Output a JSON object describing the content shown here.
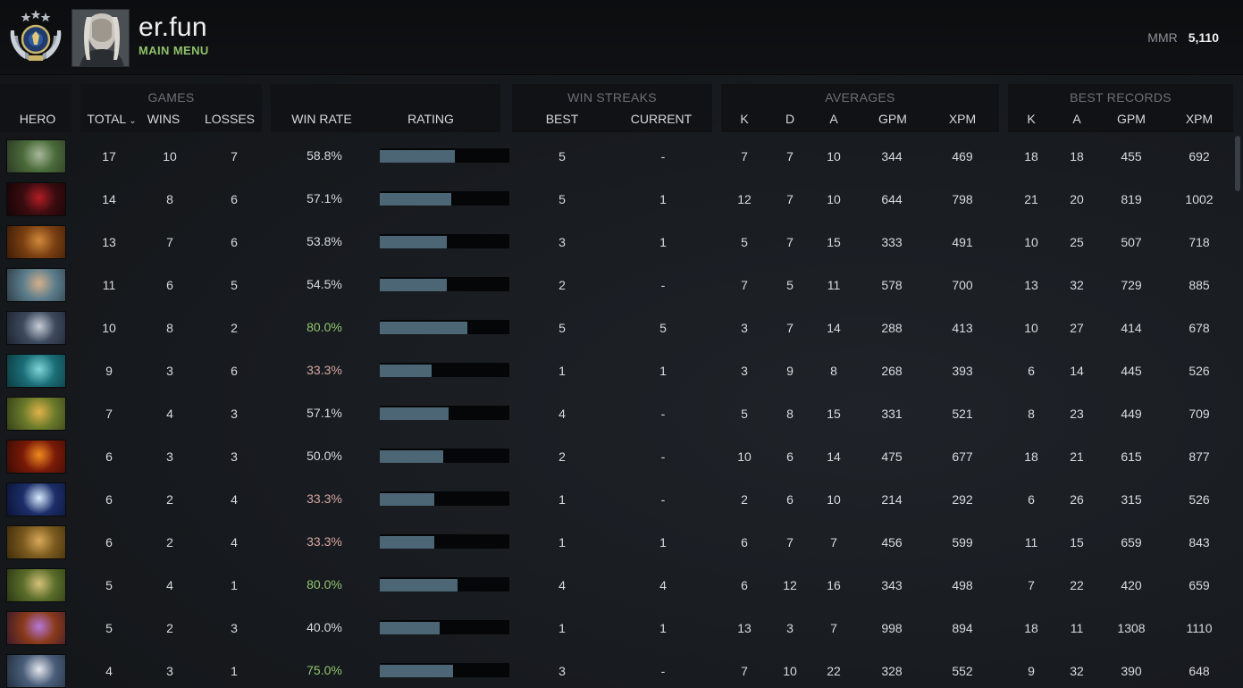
{
  "header": {
    "username": "er.fun",
    "subtitle": "MAIN MENU",
    "mmr_label": "MMR",
    "mmr_value": "5,110"
  },
  "groups": {
    "games": "GAMES",
    "win_streaks": "WIN STREAKS",
    "averages": "AVERAGES",
    "best_records": "BEST RECORDS"
  },
  "columns": {
    "hero": "HERO",
    "total": "TOTAL",
    "wins": "WINS",
    "losses": "LOSSES",
    "win_rate": "WIN RATE",
    "rating": "RATING",
    "best": "BEST",
    "current": "CURRENT",
    "avg_k": "K",
    "avg_d": "D",
    "avg_a": "A",
    "avg_gpm": "GPM",
    "avg_xpm": "XPM",
    "rec_k": "K",
    "rec_a": "A",
    "rec_gpm": "GPM",
    "rec_xpm": "XPM"
  },
  "colors": {
    "high_win_rate": "#92c56e",
    "low_win_rate": "#d8a8a2",
    "rating_bar": "#4d6676",
    "accent_green": "#8fc16a"
  },
  "rows": [
    {
      "hero": "hero-1",
      "total": "17",
      "wins": "10",
      "losses": "7",
      "win_rate": "58.8%",
      "rating": 0.59,
      "best": "5",
      "current": "-",
      "k": "7",
      "d": "7",
      "a": "10",
      "gpm": "344",
      "xpm": "469",
      "bk": "18",
      "ba": "18",
      "bgpm": "455",
      "bxpm": "692"
    },
    {
      "hero": "hero-2",
      "total": "14",
      "wins": "8",
      "losses": "6",
      "win_rate": "57.1%",
      "rating": 0.56,
      "best": "5",
      "current": "1",
      "k": "12",
      "d": "7",
      "a": "10",
      "gpm": "644",
      "xpm": "798",
      "bk": "21",
      "ba": "20",
      "bgpm": "819",
      "bxpm": "1002"
    },
    {
      "hero": "hero-3",
      "total": "13",
      "wins": "7",
      "losses": "6",
      "win_rate": "53.8%",
      "rating": 0.53,
      "best": "3",
      "current": "1",
      "k": "5",
      "d": "7",
      "a": "15",
      "gpm": "333",
      "xpm": "491",
      "bk": "10",
      "ba": "25",
      "bgpm": "507",
      "bxpm": "718"
    },
    {
      "hero": "hero-4",
      "total": "11",
      "wins": "6",
      "losses": "5",
      "win_rate": "54.5%",
      "rating": 0.53,
      "best": "2",
      "current": "-",
      "k": "7",
      "d": "5",
      "a": "11",
      "gpm": "578",
      "xpm": "700",
      "bk": "13",
      "ba": "32",
      "bgpm": "729",
      "bxpm": "885"
    },
    {
      "hero": "hero-5",
      "total": "10",
      "wins": "8",
      "losses": "2",
      "win_rate": "80.0%",
      "rating": 0.69,
      "best": "5",
      "current": "5",
      "k": "3",
      "d": "7",
      "a": "14",
      "gpm": "288",
      "xpm": "413",
      "bk": "10",
      "ba": "27",
      "bgpm": "414",
      "bxpm": "678"
    },
    {
      "hero": "hero-6",
      "total": "9",
      "wins": "3",
      "losses": "6",
      "win_rate": "33.3%",
      "rating": 0.41,
      "best": "1",
      "current": "1",
      "k": "3",
      "d": "9",
      "a": "8",
      "gpm": "268",
      "xpm": "393",
      "bk": "6",
      "ba": "14",
      "bgpm": "445",
      "bxpm": "526"
    },
    {
      "hero": "hero-7",
      "total": "7",
      "wins": "4",
      "losses": "3",
      "win_rate": "57.1%",
      "rating": 0.54,
      "best": "4",
      "current": "-",
      "k": "5",
      "d": "8",
      "a": "15",
      "gpm": "331",
      "xpm": "521",
      "bk": "8",
      "ba": "23",
      "bgpm": "449",
      "bxpm": "709"
    },
    {
      "hero": "hero-8",
      "total": "6",
      "wins": "3",
      "losses": "3",
      "win_rate": "50.0%",
      "rating": 0.5,
      "best": "2",
      "current": "-",
      "k": "10",
      "d": "6",
      "a": "14",
      "gpm": "475",
      "xpm": "677",
      "bk": "18",
      "ba": "21",
      "bgpm": "615",
      "bxpm": "877"
    },
    {
      "hero": "hero-9",
      "total": "6",
      "wins": "2",
      "losses": "4",
      "win_rate": "33.3%",
      "rating": 0.43,
      "best": "1",
      "current": "-",
      "k": "2",
      "d": "6",
      "a": "10",
      "gpm": "214",
      "xpm": "292",
      "bk": "6",
      "ba": "26",
      "bgpm": "315",
      "bxpm": "526"
    },
    {
      "hero": "hero-10",
      "total": "6",
      "wins": "2",
      "losses": "4",
      "win_rate": "33.3%",
      "rating": 0.43,
      "best": "1",
      "current": "1",
      "k": "6",
      "d": "7",
      "a": "7",
      "gpm": "456",
      "xpm": "599",
      "bk": "11",
      "ba": "15",
      "bgpm": "659",
      "bxpm": "843"
    },
    {
      "hero": "hero-11",
      "total": "5",
      "wins": "4",
      "losses": "1",
      "win_rate": "80.0%",
      "rating": 0.61,
      "best": "4",
      "current": "4",
      "k": "6",
      "d": "12",
      "a": "16",
      "gpm": "343",
      "xpm": "498",
      "bk": "7",
      "ba": "22",
      "bgpm": "420",
      "bxpm": "659"
    },
    {
      "hero": "hero-12",
      "total": "5",
      "wins": "2",
      "losses": "3",
      "win_rate": "40.0%",
      "rating": 0.47,
      "best": "1",
      "current": "1",
      "k": "13",
      "d": "3",
      "a": "7",
      "gpm": "998",
      "xpm": "894",
      "bk": "18",
      "ba": "11",
      "bgpm": "1308",
      "bxpm": "1110"
    },
    {
      "hero": "hero-13",
      "total": "4",
      "wins": "3",
      "losses": "1",
      "win_rate": "75.0%",
      "rating": 0.58,
      "best": "3",
      "current": "-",
      "k": "7",
      "d": "10",
      "a": "22",
      "gpm": "328",
      "xpm": "552",
      "bk": "9",
      "ba": "32",
      "bgpm": "390",
      "bxpm": "648"
    }
  ]
}
